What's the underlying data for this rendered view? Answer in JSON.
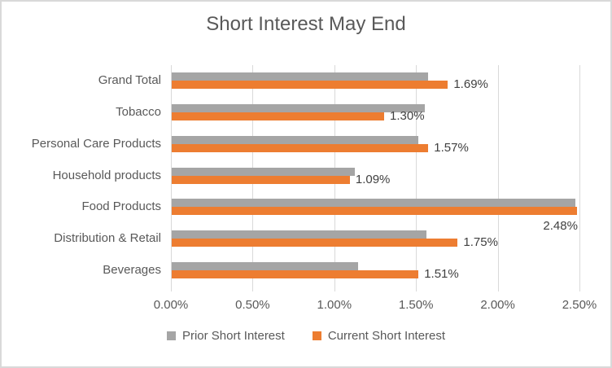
{
  "chart_data": {
    "type": "bar",
    "orientation": "horizontal",
    "title": "Short Interest May End",
    "categories": [
      "Grand Total",
      "Tobacco",
      "Personal Care Products",
      "Household products",
      "Food Products",
      "Distribution & Retail",
      "Beverages"
    ],
    "series": [
      {
        "name": "Prior Short Interest",
        "color": "#a5a5a5",
        "values": [
          1.57,
          1.55,
          1.51,
          1.12,
          2.47,
          1.56,
          1.14
        ]
      },
      {
        "name": "Current Short Interest",
        "color": "#ed7d31",
        "values": [
          1.69,
          1.3,
          1.57,
          1.09,
          2.48,
          1.75,
          1.51
        ],
        "data_labels": [
          "1.69%",
          "1.30%",
          "1.57%",
          "1.09%",
          "2.48%",
          "1.75%",
          "1.51%"
        ]
      }
    ],
    "x_axis": {
      "min": 0,
      "max": 2.5,
      "tick_labels": [
        "0.00%",
        "0.50%",
        "1.00%",
        "1.50%",
        "2.00%",
        "2.50%"
      ]
    },
    "legend": {
      "position": "bottom",
      "entries": [
        "Prior Short Interest",
        "Current Short Interest"
      ]
    },
    "grid": true,
    "colors": {
      "prior_series": "#a5a5a5",
      "current_series": "#ed7d31",
      "gridline": "#d9d9d9",
      "axis_text": "#595959",
      "title_text": "#595959",
      "data_label_text": "#404040",
      "frame_border": "#d9d9d9",
      "background": "#ffffff"
    }
  }
}
